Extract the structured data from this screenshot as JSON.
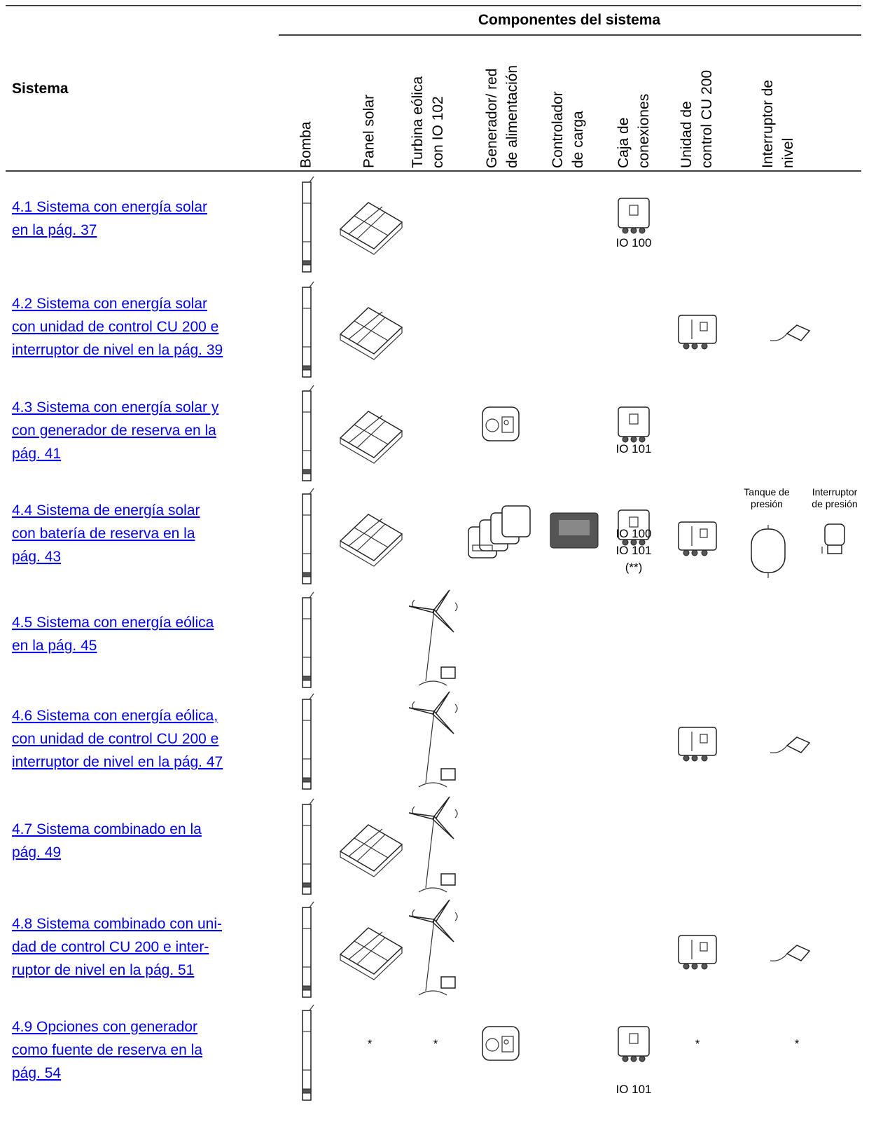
{
  "header": {
    "group": "Componentes del sistema",
    "system": "Sistema",
    "columns": [
      [
        "Bomba"
      ],
      [
        "Panel solar"
      ],
      [
        "Turbina eólica",
        "con IO 102"
      ],
      [
        "Generador/ red",
        "de alimentación"
      ],
      [
        "Controlador",
        "de carga"
      ],
      [
        "Caja de",
        "conexiones"
      ],
      [
        "Unidad de",
        "control CU 200"
      ],
      [
        "Interruptor de",
        "nivel"
      ]
    ]
  },
  "rows": [
    {
      "link": [
        "4.1 Sistema con energía solar ",
        "en la pág. 37"
      ],
      "labels": [
        [
          "IO 100"
        ]
      ]
    },
    {
      "link": [
        "4.2 Sistema con energía solar ",
        "con unidad de control CU 200 e ",
        "interruptor de nivel en la pág. 39"
      ],
      "labels": []
    },
    {
      "link": [
        "4.3 Sistema con energía solar y ",
        "con generador de reserva en la ",
        "pág. 41"
      ],
      "labels": [
        [
          "IO 101"
        ]
      ]
    },
    {
      "link": [
        "4.4 Sistema de energía solar ",
        "con batería de reserva en la ",
        "pág. 43"
      ],
      "labels": [
        [
          "IO 100",
          "IO 101",
          "(**)"
        ],
        [
          "Tanque de",
          "presión"
        ],
        [
          "Interruptor",
          "de presión"
        ]
      ]
    },
    {
      "link": [
        "4.5 Sistema con energía eólica ",
        "en la pág. 45"
      ],
      "labels": []
    },
    {
      "link": [
        "4.6 Sistema con energía eólica, ",
        "con unidad de control CU 200 e ",
        "interruptor de nivel en la pág. 47"
      ],
      "labels": []
    },
    {
      "link": [
        "4.7 Sistema combinado en la ",
        "pág. 49"
      ],
      "labels": []
    },
    {
      "link": [
        "4.8 Sistema combinado con uni-",
        "dad de control CU 200 e inter-",
        "ruptor de nivel en la pág. 51"
      ],
      "labels": []
    },
    {
      "link": [
        "4.9 Opciones con generador ",
        "como fuente de reserva en la ",
        "pág. 54"
      ],
      "labels": [
        [
          "*"
        ],
        [
          "*"
        ],
        [
          "IO 101"
        ],
        [
          "*"
        ],
        [
          "*"
        ]
      ]
    }
  ]
}
